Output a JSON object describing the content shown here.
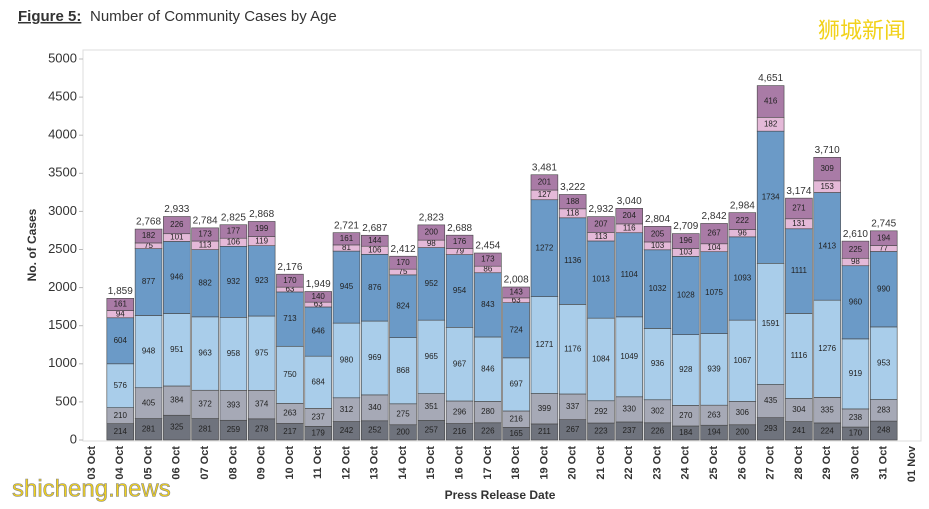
{
  "chart_data": {
    "type": "stacked_bar",
    "figure_label": "Figure 5:",
    "title": "Number of Community Cases by Age",
    "ylabel": "No. of Cases",
    "xlabel": "Press Release Date",
    "watermarks": [
      "狮城新闻",
      "shicheng.news"
    ],
    "categories": [
      "03 Oct",
      "04 Oct",
      "05 Oct",
      "06 Oct",
      "07 Oct",
      "08 Oct",
      "09 Oct",
      "10 Oct",
      "11 Oct",
      "12 Oct",
      "13 Oct",
      "14 Oct",
      "15 Oct",
      "16 Oct",
      "17 Oct",
      "18 Oct",
      "19 Oct",
      "20 Oct",
      "21 Oct",
      "22 Oct",
      "23 Oct",
      "24 Oct",
      "25 Oct",
      "26 Oct",
      "27 Oct",
      "28 Oct",
      "29 Oct",
      "30 Oct",
      "31 Oct",
      "01 Nov"
    ],
    "series": [
      {
        "color": "#6f737d",
        "values": [
          null,
          214,
          281,
          325,
          281,
          259,
          278,
          217,
          179,
          242,
          252,
          200,
          257,
          216,
          226,
          165,
          211,
          267,
          223,
          237,
          226,
          184,
          194,
          200,
          293,
          241,
          224,
          170,
          248,
          null
        ]
      },
      {
        "color": "#a6a9b6",
        "values": [
          null,
          210,
          405,
          384,
          372,
          393,
          374,
          263,
          237,
          312,
          340,
          275,
          351,
          296,
          280,
          216,
          399,
          337,
          292,
          330,
          302,
          270,
          263,
          306,
          435,
          304,
          335,
          238,
          283,
          null
        ]
      },
      {
        "color": "#a9cdea",
        "values": [
          null,
          576,
          948,
          951,
          963,
          958,
          975,
          750,
          684,
          980,
          969,
          868,
          965,
          967,
          846,
          697,
          1271,
          1176,
          1084,
          1049,
          936,
          928,
          939,
          1067,
          1591,
          1116,
          1276,
          919,
          953,
          null
        ]
      },
      {
        "color": "#6b9ac7",
        "values": [
          null,
          604,
          877,
          946,
          882,
          932,
          923,
          713,
          646,
          945,
          876,
          824,
          952,
          954,
          843,
          724,
          1272,
          1136,
          1013,
          1104,
          1032,
          1028,
          1075,
          1093,
          1734,
          1111,
          1413,
          960,
          990,
          null
        ]
      },
      {
        "color": "#e4b9d8",
        "values": [
          null,
          94,
          75,
          101,
          113,
          106,
          119,
          63,
          63,
          81,
          106,
          75,
          98,
          79,
          86,
          63,
          127,
          118,
          113,
          116,
          103,
          103,
          104,
          96,
          182,
          131,
          153,
          98,
          77,
          null
        ]
      },
      {
        "color": "#a97ba6",
        "values": [
          null,
          161,
          182,
          226,
          173,
          177,
          199,
          170,
          140,
          161,
          144,
          170,
          200,
          176,
          173,
          143,
          201,
          188,
          207,
          204,
          205,
          196,
          267,
          222,
          416,
          271,
          309,
          225,
          194,
          null
        ]
      }
    ],
    "totals": [
      null,
      1859,
      2768,
      2933,
      2784,
      2825,
      2868,
      2176,
      1949,
      2721,
      2687,
      2412,
      2823,
      2688,
      2454,
      2008,
      3481,
      3222,
      2932,
      3040,
      2804,
      2709,
      2842,
      2984,
      4651,
      3174,
      3710,
      2610,
      2745,
      null
    ],
    "total_labels": [
      null,
      "1,859",
      "2,768",
      "2,933",
      "2,784",
      "2,825",
      "2,868",
      "2,176",
      "1,949",
      "2,721",
      "2,687",
      "2,412",
      "2,823",
      "2,688",
      "2,454",
      "2,008",
      "3,481",
      "3,222",
      "2,932",
      "3,040",
      "2,804",
      "2,709",
      "2,842",
      "2,984",
      "4,651",
      "3,174",
      "3,710",
      "2,610",
      "2,745",
      null
    ],
    "ylim": [
      0,
      5000
    ],
    "yticks": [
      0,
      500,
      1000,
      1500,
      2000,
      2500,
      3000,
      3500,
      4000,
      4500,
      5000
    ],
    "grid": false
  }
}
